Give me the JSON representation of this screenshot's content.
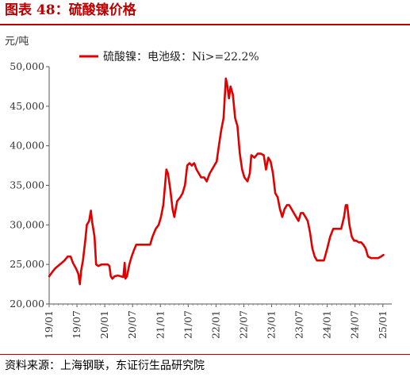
{
  "figure_title": "图表 48：硫酸镍价格",
  "source": "资料来源：上海钢联，东证衍生品研究院",
  "colors": {
    "accent": "#c00000",
    "series": "#e00000"
  },
  "chart_data": {
    "type": "line",
    "unit_label": "元/吨",
    "ylim": [
      20000,
      50000
    ],
    "y_ticks": [
      20000,
      25000,
      30000,
      35000,
      40000,
      45000,
      50000
    ],
    "y_tick_labels": [
      "20,000",
      "25,000",
      "30,000",
      "35,000",
      "40,000",
      "45,000",
      "50,000"
    ],
    "x_tick_labels": [
      "19/01",
      "19/07",
      "20/01",
      "20/07",
      "21/01",
      "21/07",
      "22/01",
      "22/07",
      "23/01",
      "23/07",
      "24/01",
      "24/07",
      "25/01"
    ],
    "grid": false,
    "legend_position": "top",
    "series": [
      {
        "name": "硫酸镍：电池级：Ni>=22.2%",
        "points": [
          [
            "2019-01-01",
            23500
          ],
          [
            "2019-01-20",
            24000
          ],
          [
            "2019-02-10",
            24500
          ],
          [
            "2019-03-10",
            25000
          ],
          [
            "2019-04-10",
            25500
          ],
          [
            "2019-05-01",
            26000
          ],
          [
            "2019-05-20",
            26000
          ],
          [
            "2019-06-05",
            25200
          ],
          [
            "2019-06-25",
            24500
          ],
          [
            "2019-07-10",
            23800
          ],
          [
            "2019-07-20",
            22500
          ],
          [
            "2019-07-28",
            24200
          ],
          [
            "2019-08-10",
            25500
          ],
          [
            "2019-08-25",
            28000
          ],
          [
            "2019-09-05",
            30000
          ],
          [
            "2019-09-20",
            30500
          ],
          [
            "2019-10-01",
            31800
          ],
          [
            "2019-10-10",
            30300
          ],
          [
            "2019-10-25",
            28500
          ],
          [
            "2019-11-05",
            25000
          ],
          [
            "2019-11-20",
            24800
          ],
          [
            "2019-12-10",
            25000
          ],
          [
            "2020-01-01",
            25000
          ],
          [
            "2020-01-20",
            25000
          ],
          [
            "2020-02-01",
            24800
          ],
          [
            "2020-02-10",
            23500
          ],
          [
            "2020-02-20",
            23200
          ],
          [
            "2020-03-05",
            23500
          ],
          [
            "2020-03-25",
            23600
          ],
          [
            "2020-04-15",
            23500
          ],
          [
            "2020-05-01",
            23400
          ],
          [
            "2020-05-10",
            25200
          ],
          [
            "2020-05-15",
            23200
          ],
          [
            "2020-05-25",
            23500
          ],
          [
            "2020-06-10",
            25000
          ],
          [
            "2020-06-25",
            26000
          ],
          [
            "2020-07-10",
            26800
          ],
          [
            "2020-07-25",
            27500
          ],
          [
            "2020-08-20",
            27500
          ],
          [
            "2020-10-01",
            27500
          ],
          [
            "2020-10-25",
            27500
          ],
          [
            "2020-11-10",
            28500
          ],
          [
            "2020-12-01",
            29500
          ],
          [
            "2020-12-20",
            30000
          ],
          [
            "2021-01-05",
            31000
          ],
          [
            "2021-01-20",
            32500
          ],
          [
            "2021-02-01",
            35000
          ],
          [
            "2021-02-10",
            37000
          ],
          [
            "2021-02-20",
            36500
          ],
          [
            "2021-03-05",
            34500
          ],
          [
            "2021-03-20",
            32000
          ],
          [
            "2021-04-01",
            31000
          ],
          [
            "2021-04-20",
            33000
          ],
          [
            "2021-05-10",
            33500
          ],
          [
            "2021-05-25",
            34000
          ],
          [
            "2021-06-10",
            35000
          ],
          [
            "2021-06-25",
            37500
          ],
          [
            "2021-07-10",
            37800
          ],
          [
            "2021-07-25",
            37500
          ],
          [
            "2021-08-10",
            37800
          ],
          [
            "2021-08-25",
            37000
          ],
          [
            "2021-09-10",
            36500
          ],
          [
            "2021-09-25",
            36000
          ],
          [
            "2021-10-15",
            36000
          ],
          [
            "2021-11-01",
            35500
          ],
          [
            "2021-11-20",
            36500
          ],
          [
            "2021-12-05",
            37000
          ],
          [
            "2021-12-20",
            37500
          ],
          [
            "2022-01-05",
            38000
          ],
          [
            "2022-01-20",
            40000
          ],
          [
            "2022-02-05",
            42000
          ],
          [
            "2022-02-20",
            43500
          ],
          [
            "2022-03-05",
            48500
          ],
          [
            "2022-03-15",
            47500
          ],
          [
            "2022-03-25",
            46000
          ],
          [
            "2022-04-05",
            47500
          ],
          [
            "2022-04-20",
            46500
          ],
          [
            "2022-05-05",
            43500
          ],
          [
            "2022-05-20",
            42500
          ],
          [
            "2022-06-05",
            39000
          ],
          [
            "2022-06-20",
            37000
          ],
          [
            "2022-07-05",
            36000
          ],
          [
            "2022-07-25",
            35500
          ],
          [
            "2022-08-10",
            36500
          ],
          [
            "2022-08-20",
            38800
          ],
          [
            "2022-09-10",
            38500
          ],
          [
            "2022-10-01",
            39000
          ],
          [
            "2022-10-20",
            39000
          ],
          [
            "2022-11-10",
            38800
          ],
          [
            "2022-11-25",
            37000
          ],
          [
            "2022-12-10",
            38500
          ],
          [
            "2022-12-25",
            38000
          ],
          [
            "2023-01-10",
            36500
          ],
          [
            "2023-01-25",
            34000
          ],
          [
            "2023-02-10",
            33500
          ],
          [
            "2023-02-25",
            32000
          ],
          [
            "2023-03-10",
            31000
          ],
          [
            "2023-03-25",
            32000
          ],
          [
            "2023-04-10",
            32500
          ],
          [
            "2023-04-25",
            32500
          ],
          [
            "2023-05-10",
            32000
          ],
          [
            "2023-05-25",
            31500
          ],
          [
            "2023-06-10",
            31000
          ],
          [
            "2023-06-25",
            30500
          ],
          [
            "2023-07-10",
            31500
          ],
          [
            "2023-07-25",
            31500
          ],
          [
            "2023-08-10",
            31000
          ],
          [
            "2023-08-25",
            30500
          ],
          [
            "2023-09-10",
            29000
          ],
          [
            "2023-09-25",
            27000
          ],
          [
            "2023-10-10",
            26000
          ],
          [
            "2023-10-25",
            25500
          ],
          [
            "2023-11-15",
            25500
          ],
          [
            "2023-12-10",
            25500
          ],
          [
            "2024-01-01",
            27000
          ],
          [
            "2024-01-20",
            28500
          ],
          [
            "2024-02-10",
            29500
          ],
          [
            "2024-03-10",
            29500
          ],
          [
            "2024-04-01",
            29500
          ],
          [
            "2024-04-20",
            31000
          ],
          [
            "2024-05-01",
            32500
          ],
          [
            "2024-05-10",
            32500
          ],
          [
            "2024-05-25",
            30000
          ],
          [
            "2024-06-10",
            28500
          ],
          [
            "2024-06-25",
            28000
          ],
          [
            "2024-07-10",
            28000
          ],
          [
            "2024-07-25",
            27800
          ],
          [
            "2024-08-10",
            27800
          ],
          [
            "2024-08-25",
            27500
          ],
          [
            "2024-09-10",
            27000
          ],
          [
            "2024-09-25",
            26000
          ],
          [
            "2024-10-15",
            25800
          ],
          [
            "2024-11-10",
            25800
          ],
          [
            "2024-12-01",
            25800
          ],
          [
            "2024-12-20",
            26000
          ],
          [
            "2025-01-05",
            26200
          ]
        ]
      }
    ]
  }
}
